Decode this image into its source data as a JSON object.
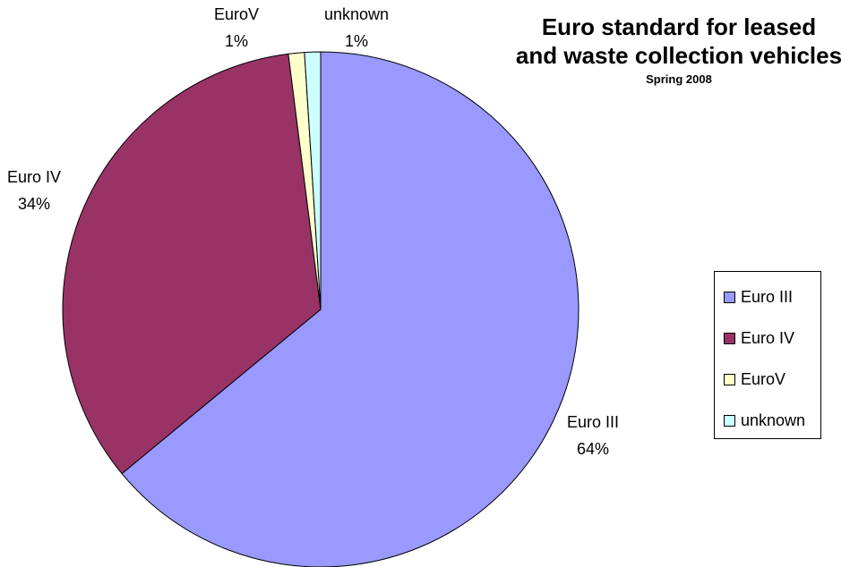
{
  "chart_data": {
    "type": "pie",
    "title_lines": [
      "Euro standard for leased",
      "and  waste collection vehicles"
    ],
    "subtitle": "Spring 2008",
    "slices": [
      {
        "name": "Euro III",
        "value": 64,
        "label_pct": "64%",
        "color": "#9999FF"
      },
      {
        "name": "Euro IV",
        "value": 34,
        "label_pct": "34%",
        "color": "#993366"
      },
      {
        "name": "EuroV",
        "value": 1,
        "label_pct": "1%",
        "color": "#FFFFCC"
      },
      {
        "name": "unknown",
        "value": 1,
        "label_pct": "1%",
        "color": "#CCFFFF"
      }
    ],
    "legend": [
      "Euro III",
      "Euro IV",
      "EuroV",
      "unknown"
    ],
    "legend_position": "right"
  }
}
